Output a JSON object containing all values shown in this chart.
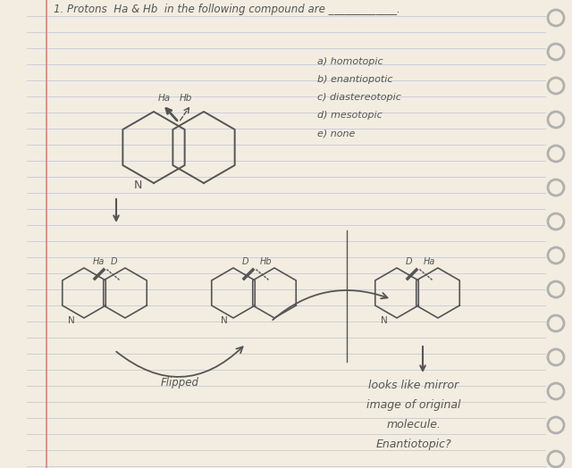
{
  "bg_color": "#f5f0e8",
  "line_color": "#c8c8d8",
  "paper_color": "#f2ede0",
  "title": "1. Protons  Ha & Hb  in the following compound are _____________.",
  "options": [
    "a) homotopic",
    "b) enantiopotic",
    "c) diastereotopic",
    "d) mesotopic",
    "e) none"
  ],
  "bottom_text": [
    "looks like mirror",
    "image of original",
    "molecule.",
    "Enantiotopic?"
  ],
  "flipped_label": "Flipped",
  "spiral_color": "#b0b0b0",
  "ink_color": "#555555",
  "red_margin": "#e08080",
  "font_family": "DejaVu Sans"
}
